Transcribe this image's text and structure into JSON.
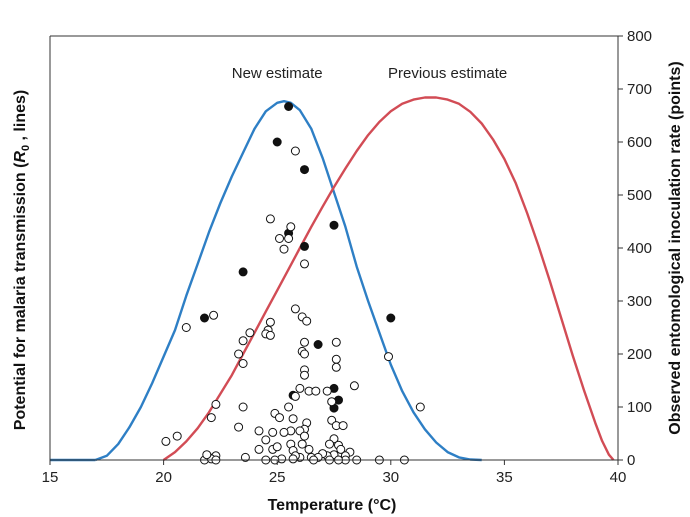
{
  "chart_data": {
    "type": "line+scatter",
    "xlabel": "Temperature (°C)",
    "ylabel_left_prefix": "Potential for malaria transmission (",
    "ylabel_left_symbol": "R",
    "ylabel_left_subscript": "0",
    "ylabel_left_suffix": " , lines)",
    "ylabel_right": "Observed entomological inoculation rate (points)",
    "xlim": [
      15,
      40
    ],
    "ylim_right": [
      0,
      800
    ],
    "x_ticks": [
      15,
      20,
      25,
      30,
      35,
      40
    ],
    "y_right_ticks": [
      0,
      100,
      200,
      300,
      400,
      500,
      600,
      700,
      800
    ],
    "grid": false,
    "colors": {
      "new": "#2e7fc5",
      "previous": "#d24c55",
      "axis": "#333333"
    },
    "series": [
      {
        "name": "New estimate",
        "kind": "line",
        "axis": "left",
        "peak_height": 677,
        "points": [
          [
            17.0,
            0
          ],
          [
            17.5,
            8
          ],
          [
            18.0,
            30
          ],
          [
            18.5,
            62
          ],
          [
            19.0,
            100
          ],
          [
            19.5,
            145
          ],
          [
            20.0,
            195
          ],
          [
            20.5,
            245
          ],
          [
            21.0,
            310
          ],
          [
            21.5,
            370
          ],
          [
            22.0,
            430
          ],
          [
            22.5,
            485
          ],
          [
            23.0,
            535
          ],
          [
            23.5,
            580
          ],
          [
            24.0,
            625
          ],
          [
            24.5,
            658
          ],
          [
            25.0,
            674
          ],
          [
            25.3,
            677
          ],
          [
            25.6,
            674
          ],
          [
            26.0,
            660
          ],
          [
            26.5,
            625
          ],
          [
            27.0,
            570
          ],
          [
            27.5,
            505
          ],
          [
            28.0,
            440
          ],
          [
            28.5,
            365
          ],
          [
            29.0,
            300
          ],
          [
            29.5,
            240
          ],
          [
            30.0,
            180
          ],
          [
            30.5,
            130
          ],
          [
            31.0,
            90
          ],
          [
            31.5,
            58
          ],
          [
            32.0,
            33
          ],
          [
            32.5,
            15
          ],
          [
            33.0,
            5
          ],
          [
            33.5,
            1
          ],
          [
            34.0,
            0
          ]
        ]
      },
      {
        "name": "Previous estimate",
        "kind": "line",
        "axis": "left",
        "peak_height": 684,
        "points": [
          [
            20.0,
            0
          ],
          [
            20.5,
            15
          ],
          [
            21.0,
            35
          ],
          [
            21.5,
            60
          ],
          [
            22.0,
            90
          ],
          [
            22.5,
            125
          ],
          [
            23.0,
            160
          ],
          [
            23.5,
            200
          ],
          [
            24.0,
            240
          ],
          [
            24.5,
            280
          ],
          [
            25.0,
            320
          ],
          [
            25.5,
            360
          ],
          [
            26.0,
            400
          ],
          [
            26.5,
            440
          ],
          [
            27.0,
            478
          ],
          [
            27.5,
            515
          ],
          [
            28.0,
            550
          ],
          [
            28.5,
            583
          ],
          [
            29.0,
            613
          ],
          [
            29.5,
            638
          ],
          [
            30.0,
            658
          ],
          [
            30.5,
            672
          ],
          [
            31.0,
            680
          ],
          [
            31.5,
            684
          ],
          [
            32.0,
            684
          ],
          [
            32.5,
            680
          ],
          [
            33.0,
            672
          ],
          [
            33.5,
            657
          ],
          [
            34.0,
            635
          ],
          [
            34.5,
            605
          ],
          [
            35.0,
            568
          ],
          [
            35.5,
            522
          ],
          [
            36.0,
            466
          ],
          [
            36.5,
            404
          ],
          [
            37.0,
            338
          ],
          [
            37.5,
            268
          ],
          [
            38.0,
            198
          ],
          [
            38.5,
            132
          ],
          [
            39.0,
            70
          ],
          [
            39.3,
            36
          ],
          [
            39.6,
            10
          ],
          [
            39.8,
            0
          ]
        ]
      },
      {
        "name": "Observed EIR (filled)",
        "kind": "scatter",
        "axis": "right",
        "filled": true,
        "points": [
          [
            25.5,
            667
          ],
          [
            25.0,
            600
          ],
          [
            26.2,
            548
          ],
          [
            25.5,
            428
          ],
          [
            27.5,
            443
          ],
          [
            26.2,
            403
          ],
          [
            23.5,
            355
          ],
          [
            21.8,
            268
          ],
          [
            30.0,
            268
          ],
          [
            26.8,
            218
          ],
          [
            27.5,
            135
          ],
          [
            27.7,
            113
          ],
          [
            27.5,
            98
          ],
          [
            25.7,
            122
          ]
        ]
      },
      {
        "name": "Observed EIR (open)",
        "kind": "scatter",
        "axis": "right",
        "filled": false,
        "points": [
          [
            25.8,
            583
          ],
          [
            24.7,
            455
          ],
          [
            25.6,
            440
          ],
          [
            25.5,
            418
          ],
          [
            25.1,
            418
          ],
          [
            25.3,
            398
          ],
          [
            26.2,
            370
          ],
          [
            21.0,
            250
          ],
          [
            22.2,
            273
          ],
          [
            25.8,
            285
          ],
          [
            26.1,
            270
          ],
          [
            26.3,
            262
          ],
          [
            24.7,
            260
          ],
          [
            24.6,
            245
          ],
          [
            24.5,
            238
          ],
          [
            24.7,
            235
          ],
          [
            23.8,
            240
          ],
          [
            23.5,
            225
          ],
          [
            23.3,
            200
          ],
          [
            23.5,
            182
          ],
          [
            26.2,
            222
          ],
          [
            27.6,
            222
          ],
          [
            26.1,
            205
          ],
          [
            26.2,
            200
          ],
          [
            27.6,
            190
          ],
          [
            27.6,
            175
          ],
          [
            26.2,
            170
          ],
          [
            26.2,
            160
          ],
          [
            29.9,
            195
          ],
          [
            28.4,
            140
          ],
          [
            26.0,
            135
          ],
          [
            26.4,
            130
          ],
          [
            26.7,
            130
          ],
          [
            27.2,
            130
          ],
          [
            27.4,
            110
          ],
          [
            25.8,
            120
          ],
          [
            25.5,
            100
          ],
          [
            24.9,
            88
          ],
          [
            25.1,
            80
          ],
          [
            25.7,
            78
          ],
          [
            26.3,
            70
          ],
          [
            26.2,
            58
          ],
          [
            26.0,
            55
          ],
          [
            25.6,
            55
          ],
          [
            25.3,
            52
          ],
          [
            24.8,
            52
          ],
          [
            24.2,
            55
          ],
          [
            22.3,
            105
          ],
          [
            22.1,
            80
          ],
          [
            23.5,
            100
          ],
          [
            23.3,
            62
          ],
          [
            24.5,
            38
          ],
          [
            24.2,
            20
          ],
          [
            24.8,
            20
          ],
          [
            25.0,
            25
          ],
          [
            25.6,
            30
          ],
          [
            25.7,
            18
          ],
          [
            26.2,
            45
          ],
          [
            26.1,
            30
          ],
          [
            26.4,
            20
          ],
          [
            27.4,
            75
          ],
          [
            27.6,
            65
          ],
          [
            27.9,
            65
          ],
          [
            27.5,
            40
          ],
          [
            27.3,
            30
          ],
          [
            27.7,
            28
          ],
          [
            27.8,
            20
          ],
          [
            28.2,
            15
          ],
          [
            28.0,
            8
          ],
          [
            27.5,
            10
          ],
          [
            27.2,
            8
          ],
          [
            27.0,
            12
          ],
          [
            26.8,
            5
          ],
          [
            26.5,
            5
          ],
          [
            26.0,
            5
          ],
          [
            25.8,
            8
          ],
          [
            25.7,
            2
          ],
          [
            25.2,
            2
          ],
          [
            24.9,
            0
          ],
          [
            24.5,
            0
          ],
          [
            23.6,
            5
          ],
          [
            22.3,
            8
          ],
          [
            22.0,
            5
          ],
          [
            21.8,
            0
          ],
          [
            22.1,
            2
          ],
          [
            22.3,
            0
          ],
          [
            21.9,
            10
          ],
          [
            20.6,
            45
          ],
          [
            20.1,
            35
          ],
          [
            28.5,
            0
          ],
          [
            28.0,
            0
          ],
          [
            27.7,
            0
          ],
          [
            27.3,
            0
          ],
          [
            26.6,
            0
          ],
          [
            29.5,
            0
          ],
          [
            30.6,
            0
          ],
          [
            31.3,
            100
          ]
        ]
      }
    ],
    "labels": [
      {
        "text": "New estimate",
        "x": 25.0,
        "y": 730
      },
      {
        "text": "Previous estimate",
        "x": 32.5,
        "y": 730
      }
    ]
  }
}
